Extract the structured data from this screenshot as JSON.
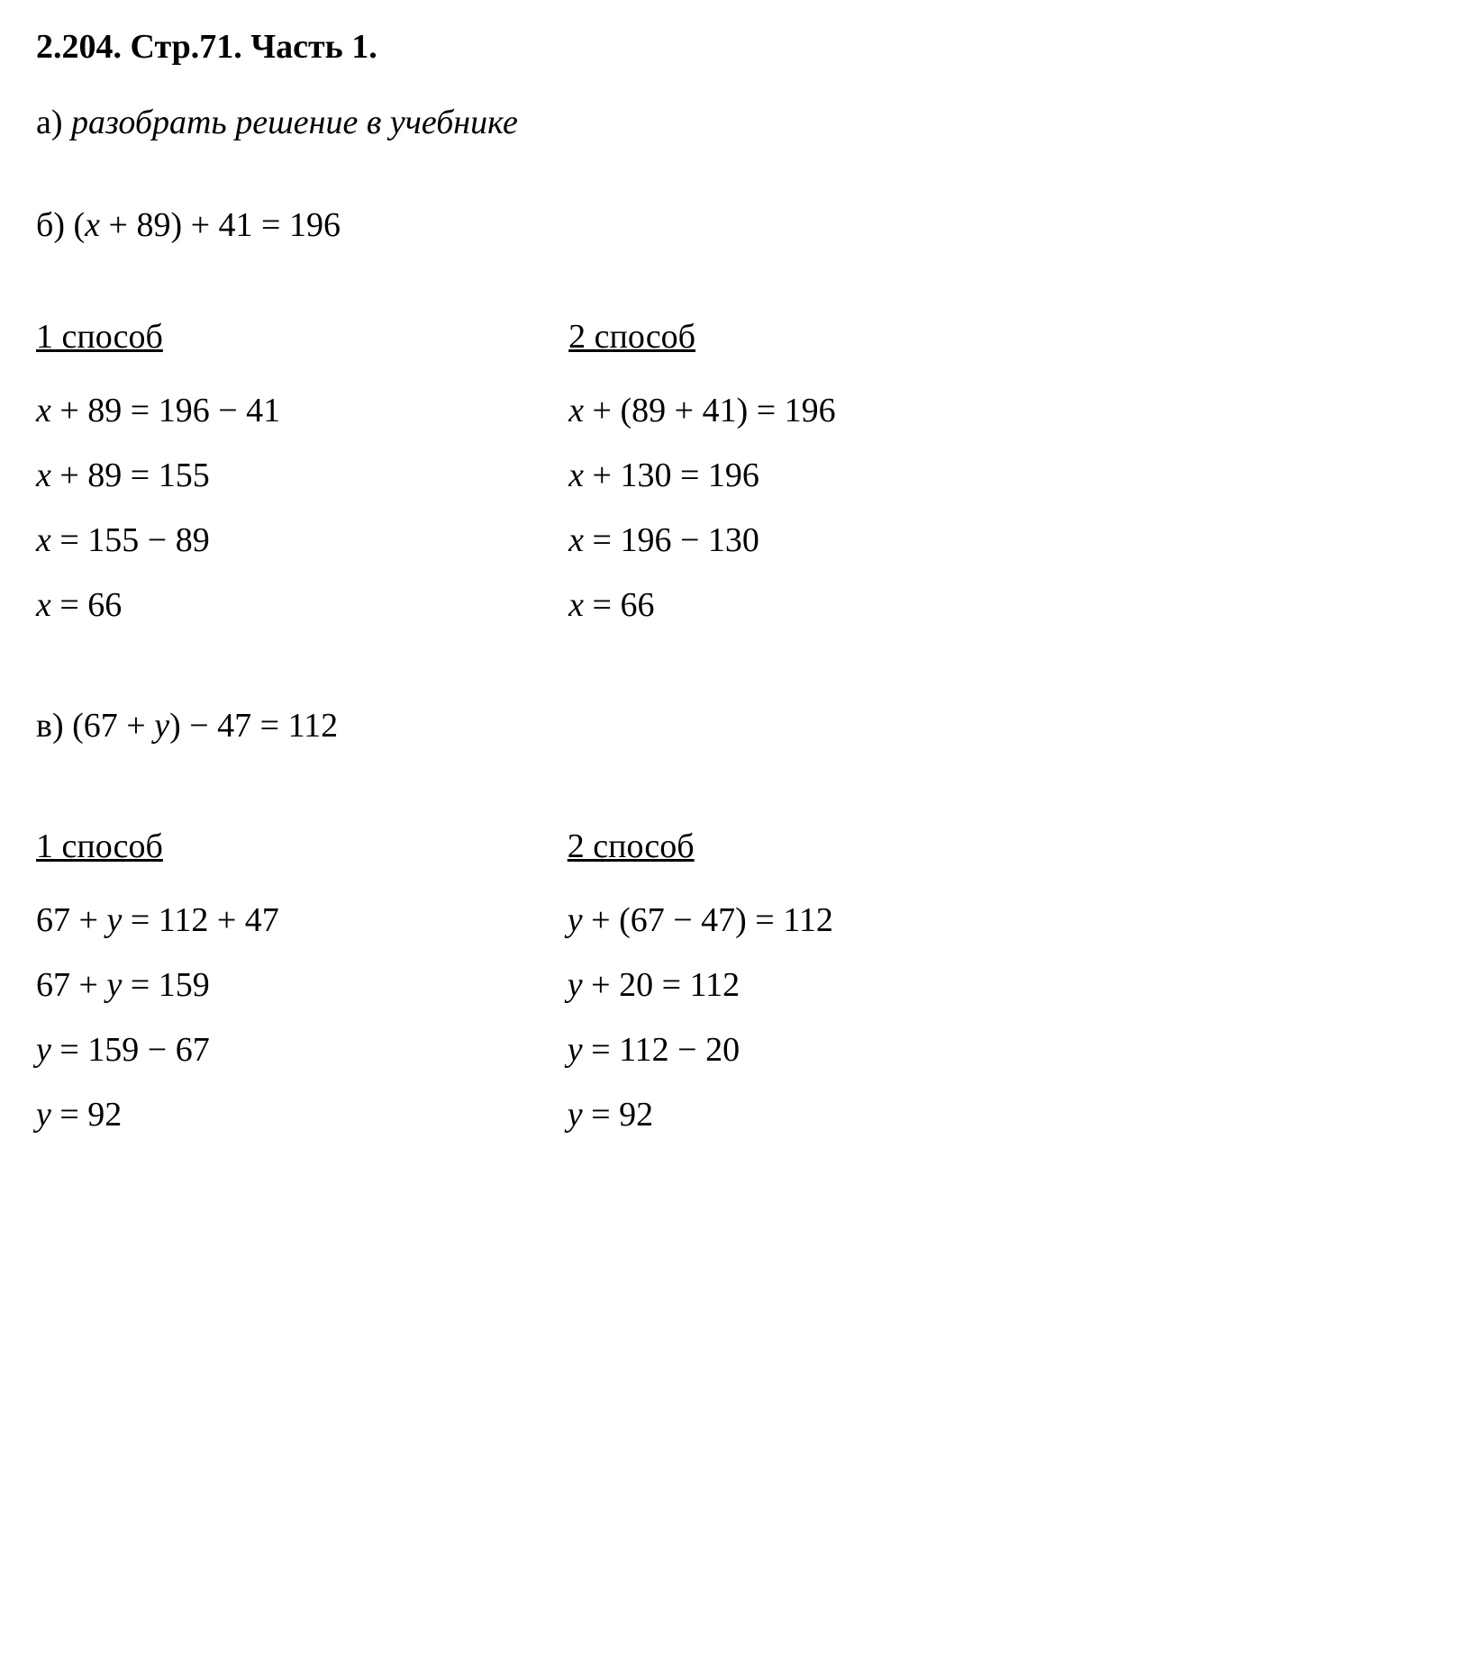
{
  "header": "2.204. Стр.71. Часть 1.",
  "partA": {
    "label": "а) ",
    "text": "разобрать решение в учебнике"
  },
  "partB": {
    "label": "б) (",
    "var": "x",
    "rest": " + 89) + 41 = 196"
  },
  "partB_methods": {
    "method1": {
      "title": "1 способ",
      "lines": [
        {
          "pre": "",
          "var": "x",
          "post": " + 89 = 196 − 41"
        },
        {
          "pre": "",
          "var": "x",
          "post": " + 89 = 155"
        },
        {
          "pre": "",
          "var": "x",
          "post": " = 155 − 89"
        },
        {
          "pre": "",
          "var": "x",
          "post": " = 66"
        }
      ]
    },
    "method2": {
      "title": "2 способ",
      "lines": [
        {
          "pre": "",
          "var": "x",
          "post": " + (89 + 41) = 196"
        },
        {
          "pre": "",
          "var": "x",
          "post": " + 130 = 196"
        },
        {
          "pre": "",
          "var": "x",
          "post": " = 196 − 130"
        },
        {
          "pre": "",
          "var": "x",
          "post": " = 66"
        }
      ]
    }
  },
  "partC": {
    "label": "в) (67 + ",
    "var": "y",
    "rest": ") − 47 = 112"
  },
  "partC_methods": {
    "method1": {
      "title": "1 способ",
      "lines": [
        {
          "pre": "67 + ",
          "var": "y",
          "post": " = 112 + 47"
        },
        {
          "pre": "67 + ",
          "var": "y",
          "post": " = 159"
        },
        {
          "pre": "",
          "var": "y",
          "post": " = 159 − 67"
        },
        {
          "pre": "",
          "var": "y",
          "post": " = 92"
        }
      ]
    },
    "method2": {
      "title": "2 способ",
      "lines": [
        {
          "pre": "",
          "var": "y",
          "post": " + (67 − 47) = 112"
        },
        {
          "pre": "",
          "var": "y",
          "post": " + 20 = 112"
        },
        {
          "pre": "",
          "var": "y",
          "post": " = 112 − 20"
        },
        {
          "pre": "",
          "var": "y",
          "post": " = 92"
        }
      ]
    }
  },
  "styling": {
    "background_color": "#ffffff",
    "text_color": "#000000",
    "font_family": "Times New Roman",
    "header_fontsize": 38,
    "header_fontweight": "bold",
    "body_fontsize": 38,
    "line_gap": 28,
    "column_gap": 320,
    "section_gap": 90
  }
}
